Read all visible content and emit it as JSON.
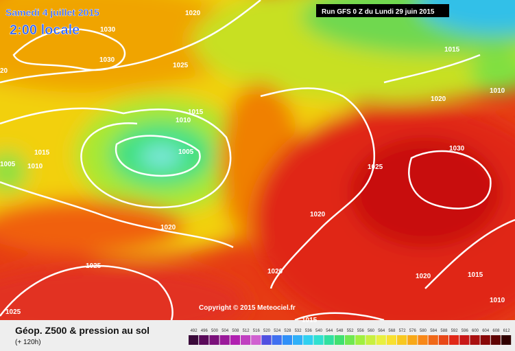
{
  "header": {
    "date": "Samedi 4 juillet 2015",
    "time": "2:00 locale",
    "run": "Run GFS 0 Z du Lundi 29 juin 2015"
  },
  "copyright": "Copyright © 2015 Meteociel.fr",
  "legend": {
    "title": "Géop. Z500 & pression au sol",
    "lead": "(+ 120h)",
    "scale": [
      492,
      496,
      500,
      504,
      508,
      512,
      516,
      520,
      524,
      528,
      532,
      536,
      540,
      544,
      548,
      552,
      556,
      560,
      564,
      568,
      572,
      576,
      580,
      584,
      588,
      592,
      596,
      600,
      604,
      608,
      612
    ]
  },
  "isobar_labels": [
    "1020",
    "1030",
    "1030",
    "1025",
    "20",
    "1015",
    "1010",
    "1005",
    "1015",
    "1005",
    "1010",
    "1025",
    "1020",
    "1020",
    "1025",
    "1020",
    "1015",
    "1020",
    "1010",
    "1030",
    "1020",
    "1015",
    "1010",
    "1025",
    "1015"
  ]
}
